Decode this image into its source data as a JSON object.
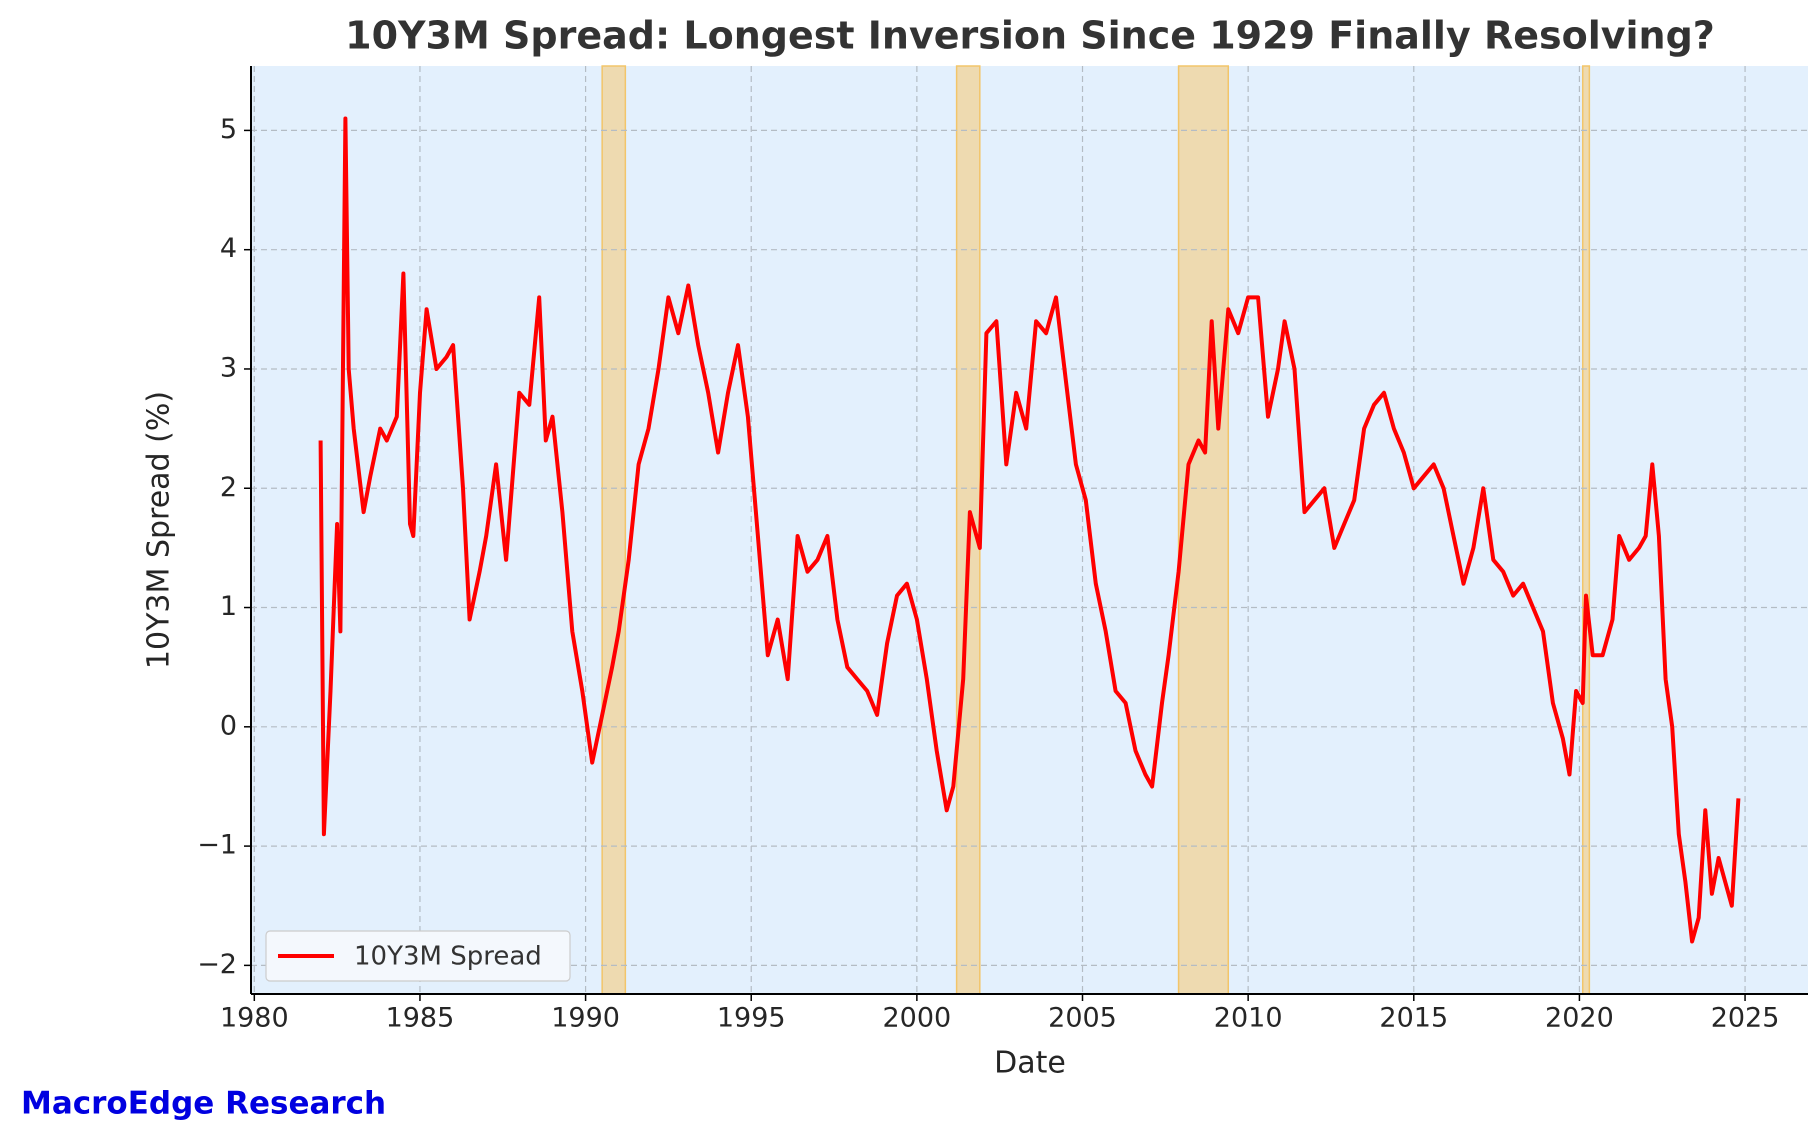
{
  "chart_data": {
    "type": "line",
    "title": "10Y3M Spread: Longest Inversion Since 1929 Finally Resolving?",
    "xlabel": "Date",
    "ylabel": "10Y3M Spread (%)",
    "watermark": "MacroEdge Research",
    "background": "#e3f0fd",
    "grid": true,
    "legend": "lower left",
    "xlim": [
      1979.9,
      2026.9
    ],
    "ylim": [
      -2.24,
      5.54
    ],
    "xticks": [
      1980,
      1985,
      1990,
      1995,
      2000,
      2005,
      2010,
      2015,
      2020,
      2025
    ],
    "yticks": [
      -2,
      -1,
      0,
      1,
      2,
      3,
      4,
      5
    ],
    "recession_color": "#eedab0",
    "recessions": [
      [
        1990.5,
        1991.2
      ],
      [
        2001.2,
        2001.9
      ],
      [
        2007.9,
        2009.4
      ],
      [
        2020.1,
        2020.3
      ]
    ],
    "x": [
      1982.0,
      1982.1,
      1982.3,
      1982.5,
      1982.6,
      1982.75,
      1982.85,
      1983.0,
      1983.3,
      1983.5,
      1983.8,
      1984.0,
      1984.3,
      1984.5,
      1984.7,
      1984.8,
      1985.0,
      1985.2,
      1985.5,
      1985.8,
      1986.0,
      1986.3,
      1986.5,
      1986.8,
      1987.0,
      1987.3,
      1987.6,
      1988.0,
      1988.3,
      1988.6,
      1988.8,
      1989.0,
      1989.3,
      1989.6,
      1989.9,
      1990.2,
      1990.5,
      1990.8,
      1991.0,
      1991.3,
      1991.6,
      1991.9,
      1992.2,
      1992.5,
      1992.8,
      1993.1,
      1993.4,
      1993.7,
      1994.0,
      1994.3,
      1994.6,
      1994.9,
      1995.2,
      1995.5,
      1995.8,
      1996.1,
      1996.4,
      1996.7,
      1997.0,
      1997.3,
      1997.6,
      1997.9,
      1998.2,
      1998.5,
      1998.8,
      1999.1,
      1999.4,
      1999.7,
      2000.0,
      2000.3,
      2000.6,
      2000.9,
      2001.1,
      2001.4,
      2001.6,
      2001.9,
      2002.1,
      2002.4,
      2002.7,
      2003.0,
      2003.3,
      2003.6,
      2003.9,
      2004.2,
      2004.5,
      2004.8,
      2005.1,
      2005.4,
      2005.7,
      2006.0,
      2006.3,
      2006.6,
      2006.9,
      2007.1,
      2007.4,
      2007.6,
      2007.9,
      2008.2,
      2008.5,
      2008.7,
      2008.9,
      2009.1,
      2009.4,
      2009.7,
      2010.0,
      2010.3,
      2010.6,
      2010.9,
      2011.1,
      2011.4,
      2011.7,
      2012.0,
      2012.3,
      2012.6,
      2012.9,
      2013.2,
      2013.5,
      2013.8,
      2014.1,
      2014.4,
      2014.7,
      2015.0,
      2015.3,
      2015.6,
      2015.9,
      2016.2,
      2016.5,
      2016.8,
      2017.1,
      2017.4,
      2017.7,
      2018.0,
      2018.3,
      2018.6,
      2018.9,
      2019.2,
      2019.5,
      2019.7,
      2019.9,
      2020.1,
      2020.2,
      2020.4,
      2020.7,
      2021.0,
      2021.2,
      2021.5,
      2021.8,
      2022.0,
      2022.2,
      2022.4,
      2022.6,
      2022.8,
      2023.0,
      2023.2,
      2023.4,
      2023.6,
      2023.8,
      2024.0,
      2024.2,
      2024.4,
      2024.6,
      2024.8
    ],
    "series": [
      {
        "name": "10Y3M Spread",
        "color": "#ff0000",
        "values": [
          2.4,
          -0.9,
          0.3,
          1.7,
          0.8,
          5.1,
          3.0,
          2.5,
          1.8,
          2.1,
          2.5,
          2.4,
          2.6,
          3.8,
          1.7,
          1.6,
          2.8,
          3.5,
          3.0,
          3.1,
          3.2,
          2.0,
          0.9,
          1.3,
          1.6,
          2.2,
          1.4,
          2.8,
          2.7,
          3.6,
          2.4,
          2.6,
          1.8,
          0.8,
          0.3,
          -0.3,
          0.1,
          0.5,
          0.8,
          1.4,
          2.2,
          2.5,
          3.0,
          3.6,
          3.3,
          3.7,
          3.2,
          2.8,
          2.3,
          2.8,
          3.2,
          2.6,
          1.6,
          0.6,
          0.9,
          0.4,
          1.6,
          1.3,
          1.4,
          1.6,
          0.9,
          0.5,
          0.4,
          0.3,
          0.1,
          0.7,
          1.1,
          1.2,
          0.9,
          0.4,
          -0.2,
          -0.7,
          -0.5,
          0.4,
          1.8,
          1.5,
          3.3,
          3.4,
          2.2,
          2.8,
          2.5,
          3.4,
          3.3,
          3.6,
          2.9,
          2.2,
          1.9,
          1.2,
          0.8,
          0.3,
          0.2,
          -0.2,
          -0.4,
          -0.5,
          0.2,
          0.6,
          1.3,
          2.2,
          2.4,
          2.3,
          3.4,
          2.5,
          3.5,
          3.3,
          3.6,
          3.6,
          2.6,
          3.0,
          3.4,
          3.0,
          1.8,
          1.9,
          2.0,
          1.5,
          1.7,
          1.9,
          2.5,
          2.7,
          2.8,
          2.5,
          2.3,
          2.0,
          2.1,
          2.2,
          2.0,
          1.6,
          1.2,
          1.5,
          2.0,
          1.4,
          1.3,
          1.1,
          1.2,
          1.0,
          0.8,
          0.2,
          -0.1,
          -0.4,
          0.3,
          0.2,
          1.1,
          0.6,
          0.6,
          0.9,
          1.6,
          1.4,
          1.5,
          1.6,
          2.2,
          1.6,
          0.4,
          0.0,
          -0.9,
          -1.3,
          -1.8,
          -1.6,
          -0.7,
          -1.4,
          -1.1,
          -1.3,
          -1.5,
          -0.6
        ]
      }
    ]
  }
}
